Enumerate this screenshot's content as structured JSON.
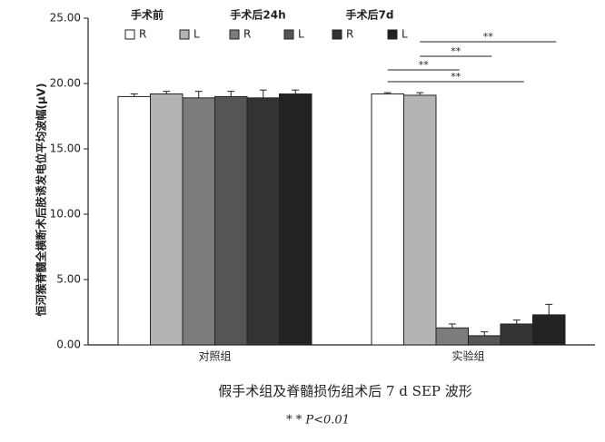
{
  "chart_data": {
    "type": "bar",
    "y_label": "恒河猴脊髓全横断术后肢诱发电位平均波幅(μV)",
    "caption": "假手术组及脊髓损伤组术后 7 d SEP 波形",
    "note": "* * P<0.01",
    "categories": [
      "对照组",
      "实验组"
    ],
    "legend_groups": [
      "手术前",
      "手术后24h",
      "手术后7d"
    ],
    "series": [
      {
        "name": "R",
        "color": "#ffffff",
        "values": [
          19.0,
          19.2
        ],
        "errors": [
          0.2,
          0.1
        ]
      },
      {
        "name": "L",
        "color": "#b4b4b4",
        "values": [
          19.2,
          19.1
        ],
        "errors": [
          0.2,
          0.2
        ]
      },
      {
        "name": "R",
        "color": "#7c7c7c",
        "values": [
          18.9,
          1.3
        ],
        "errors": [
          0.5,
          0.3
        ]
      },
      {
        "name": "L",
        "color": "#555555",
        "values": [
          19.0,
          0.7
        ],
        "errors": [
          0.4,
          0.3
        ]
      },
      {
        "name": "R",
        "color": "#333333",
        "values": [
          18.9,
          1.6
        ],
        "errors": [
          0.6,
          0.3
        ]
      },
      {
        "name": "L",
        "color": "#222222",
        "values": [
          19.2,
          2.3
        ],
        "errors": [
          0.3,
          0.8
        ]
      }
    ],
    "annotations": [
      "**",
      "**",
      "**",
      "**"
    ],
    "ylim": [
      0,
      25
    ],
    "yticks": [
      {
        "value": 0,
        "label": "0.00"
      },
      {
        "value": 5,
        "label": "5.00"
      },
      {
        "value": 10,
        "label": "10.00"
      },
      {
        "value": 15,
        "label": "15.00"
      },
      {
        "value": 20,
        "label": "20.00"
      },
      {
        "value": 25,
        "label": "25.00"
      }
    ]
  }
}
